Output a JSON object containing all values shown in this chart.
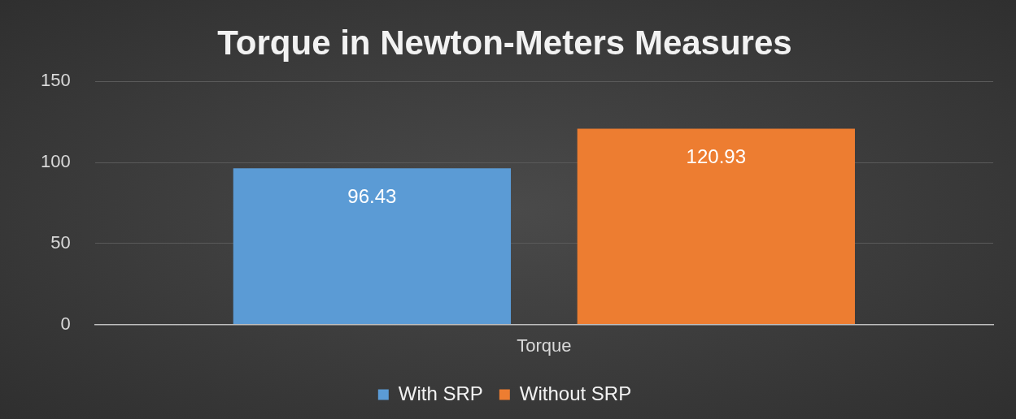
{
  "chart_data": {
    "type": "bar",
    "title": "Torque in Newton-Meters Measures",
    "categories": [
      "Torque"
    ],
    "series": [
      {
        "name": "With SRP",
        "color": "#5b9bd5",
        "values": [
          96.43
        ]
      },
      {
        "name": "Without SRP",
        "color": "#ed7d31",
        "values": [
          120.93
        ]
      }
    ],
    "ylim": [
      0,
      150
    ],
    "yticks": [
      0,
      50,
      100,
      150
    ],
    "grid": "y",
    "legend": "bottom",
    "data_labels": true
  }
}
